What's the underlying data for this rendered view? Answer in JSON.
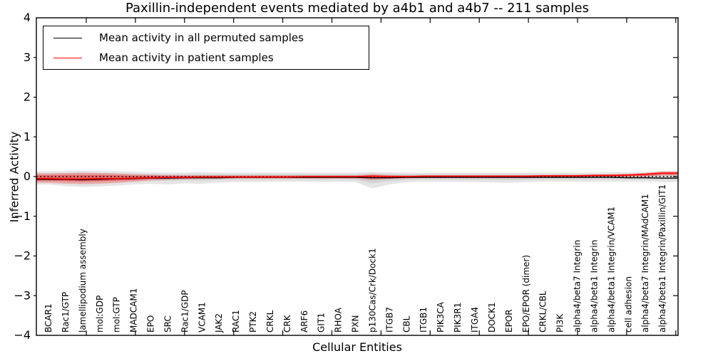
{
  "figure": {
    "background": "#ffffff"
  },
  "chart_data": {
    "type": "line",
    "title": "Paxillin-independent events mediated by a4b1 and a4b7 -- 211 samples",
    "xlabel": "Cellular Entities",
    "ylabel": "Inferred Activity",
    "ylim": [
      -4,
      4
    ],
    "ytick_labels": [
      "4",
      "3",
      "2",
      "1",
      "0",
      "−1",
      "−2",
      "−3",
      "−4"
    ],
    "ytick_values": [
      4,
      3,
      2,
      1,
      0,
      -1,
      -2,
      -3,
      -4
    ],
    "grid": false,
    "legend_position": "upper left",
    "zero_line": {
      "y": 0,
      "style": "dotted",
      "color": "#000000"
    },
    "categories": [
      "BCAR1",
      "Rac1/GTP",
      "lamellipodium assembly",
      "mol:GDP",
      "mol:GTP",
      "MADCAM1",
      "EPO",
      "SRC",
      "Rac1/GDP",
      "VCAM1",
      "JAK2",
      "RAC1",
      "PTK2",
      "CRKL",
      "CRK",
      "ARF6",
      "GIT1",
      "RHOA",
      "PXN",
      "p130Cas/Crk/Dock1",
      "ITGB7",
      "CBL",
      "ITGB1",
      "PIK3CA",
      "PIK3R1",
      "ITGA4",
      "DOCK1",
      "EPOR",
      "EPO/EPOR (dimer)",
      "CRKL/CBL",
      "PI3K",
      "alpha4/beta7 Integrin",
      "alpha4/beta1 Integrin",
      "alpha4/beta1 Integrin/VCAM1",
      "cell adhesion",
      "alpha4/beta7 Integrin/MAdCAM1",
      "alpha4/beta1 Integrin/Paxillin/GIT1"
    ],
    "series": [
      {
        "name": "Mean activity in all permuted samples",
        "color": "#000000",
        "values": [
          -0.07,
          -0.07,
          -0.08,
          -0.07,
          -0.06,
          -0.05,
          -0.04,
          -0.04,
          -0.03,
          -0.03,
          -0.03,
          -0.02,
          -0.02,
          -0.02,
          -0.02,
          -0.02,
          -0.02,
          -0.02,
          -0.02,
          -0.03,
          -0.03,
          -0.02,
          -0.02,
          -0.02,
          -0.02,
          -0.02,
          -0.02,
          -0.02,
          -0.02,
          -0.02,
          -0.02,
          -0.02,
          -0.02,
          -0.02,
          -0.03,
          -0.03,
          -0.04
        ]
      },
      {
        "name": "Mean activity in patient samples",
        "color": "#ff0000",
        "values": [
          -0.05,
          -0.06,
          -0.06,
          -0.05,
          -0.05,
          -0.04,
          -0.03,
          -0.02,
          -0.02,
          -0.01,
          -0.01,
          -0.01,
          -0.01,
          -0.01,
          -0.01,
          0.0,
          0.0,
          0.0,
          0.0,
          0.01,
          0.0,
          0.0,
          0.01,
          0.01,
          0.01,
          0.01,
          0.01,
          0.01,
          0.01,
          0.02,
          0.02,
          0.02,
          0.03,
          0.03,
          0.04,
          0.06,
          0.09
        ]
      }
    ],
    "bands": [
      {
        "name": "permuted-range-outer",
        "color": "#000000",
        "opacity": 0.1,
        "upper": [
          0.13,
          0.14,
          0.15,
          0.14,
          0.13,
          0.12,
          0.11,
          0.1,
          0.1,
          0.11,
          0.1,
          0.1,
          0.1,
          0.1,
          0.1,
          0.1,
          0.1,
          0.1,
          0.1,
          0.12,
          0.11,
          0.1,
          0.1,
          0.1,
          0.1,
          0.1,
          0.1,
          0.1,
          0.1,
          0.1,
          0.1,
          0.1,
          0.1,
          0.11,
          0.11,
          0.12,
          0.14
        ],
        "lower": [
          -0.2,
          -0.24,
          -0.26,
          -0.25,
          -0.23,
          -0.2,
          -0.18,
          -0.2,
          -0.17,
          -0.18,
          -0.15,
          -0.14,
          -0.14,
          -0.13,
          -0.13,
          -0.13,
          -0.14,
          -0.13,
          -0.14,
          -0.3,
          -0.2,
          -0.14,
          -0.13,
          -0.13,
          -0.13,
          -0.14,
          -0.15,
          -0.16,
          -0.14,
          -0.13,
          -0.13,
          -0.13,
          -0.13,
          -0.13,
          -0.13,
          -0.13,
          -0.14
        ]
      },
      {
        "name": "permuted-range-inner",
        "color": "#000000",
        "opacity": 0.08,
        "upper": [
          0.07,
          0.08,
          0.08,
          0.08,
          0.07,
          0.07,
          0.06,
          0.06,
          0.06,
          0.06,
          0.06,
          0.06,
          0.06,
          0.06,
          0.06,
          0.06,
          0.06,
          0.06,
          0.06,
          0.07,
          0.06,
          0.06,
          0.06,
          0.06,
          0.06,
          0.06,
          0.06,
          0.06,
          0.06,
          0.06,
          0.06,
          0.06,
          0.06,
          0.06,
          0.06,
          0.07,
          0.08
        ],
        "lower": [
          -0.12,
          -0.14,
          -0.15,
          -0.14,
          -0.13,
          -0.11,
          -0.1,
          -0.11,
          -0.09,
          -0.1,
          -0.08,
          -0.08,
          -0.08,
          -0.07,
          -0.07,
          -0.07,
          -0.08,
          -0.07,
          -0.08,
          -0.17,
          -0.11,
          -0.08,
          -0.07,
          -0.07,
          -0.07,
          -0.08,
          -0.08,
          -0.09,
          -0.08,
          -0.07,
          -0.07,
          -0.07,
          -0.07,
          -0.07,
          -0.07,
          -0.07,
          -0.08
        ]
      },
      {
        "name": "patient-range-outer",
        "color": "#ff0000",
        "opacity": 0.25,
        "upper": [
          0.08,
          0.09,
          0.1,
          0.09,
          0.08,
          0.06,
          0.05,
          0.04,
          0.03,
          0.03,
          0.03,
          0.03,
          0.03,
          0.03,
          0.03,
          0.03,
          0.03,
          0.03,
          0.03,
          0.06,
          0.04,
          0.03,
          0.03,
          0.03,
          0.03,
          0.03,
          0.03,
          0.03,
          0.03,
          0.03,
          0.04,
          0.04,
          0.05,
          0.06,
          0.07,
          0.09,
          0.13
        ],
        "lower": [
          -0.16,
          -0.18,
          -0.19,
          -0.18,
          -0.16,
          -0.13,
          -0.1,
          -0.08,
          -0.07,
          -0.06,
          -0.06,
          -0.05,
          -0.05,
          -0.05,
          -0.05,
          -0.05,
          -0.05,
          -0.05,
          -0.05,
          -0.09,
          -0.06,
          -0.05,
          -0.04,
          -0.04,
          -0.04,
          -0.04,
          -0.04,
          -0.04,
          -0.04,
          -0.03,
          -0.03,
          -0.03,
          -0.02,
          -0.02,
          -0.01,
          0.0,
          0.03
        ]
      },
      {
        "name": "patient-range-inner",
        "color": "#ff0000",
        "opacity": 0.35,
        "upper": [
          0.03,
          0.04,
          0.04,
          0.04,
          0.03,
          0.02,
          0.02,
          0.01,
          0.01,
          0.01,
          0.01,
          0.01,
          0.01,
          0.01,
          0.01,
          0.01,
          0.01,
          0.01,
          0.01,
          0.03,
          0.02,
          0.01,
          0.01,
          0.01,
          0.01,
          0.01,
          0.01,
          0.01,
          0.01,
          0.02,
          0.02,
          0.02,
          0.03,
          0.03,
          0.04,
          0.05,
          0.09
        ],
        "lower": [
          -0.1,
          -0.11,
          -0.12,
          -0.11,
          -0.1,
          -0.08,
          -0.06,
          -0.05,
          -0.04,
          -0.03,
          -0.03,
          -0.03,
          -0.03,
          -0.03,
          -0.03,
          -0.03,
          -0.03,
          -0.03,
          -0.03,
          -0.05,
          -0.04,
          -0.03,
          -0.02,
          -0.02,
          -0.02,
          -0.02,
          -0.02,
          -0.02,
          -0.02,
          -0.01,
          -0.01,
          -0.01,
          0.0,
          0.0,
          0.01,
          0.02,
          0.05
        ]
      }
    ]
  },
  "legend": {
    "items": [
      {
        "label": "Mean activity in all permuted samples",
        "color": "#000000"
      },
      {
        "label": "Mean activity in patient samples",
        "color": "#ff0000"
      }
    ]
  }
}
